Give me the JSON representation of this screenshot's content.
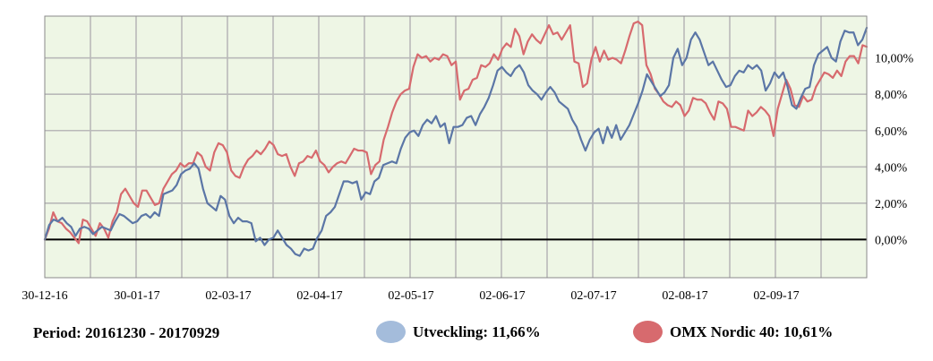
{
  "chart_data": {
    "type": "line",
    "title": "",
    "xlabel": "",
    "ylabel": "",
    "x_tick_labels": [
      "30-12-16",
      "30-01-17",
      "02-03-17",
      "02-04-17",
      "02-05-17",
      "02-06-17",
      "02-07-17",
      "02-08-17",
      "02-09-17"
    ],
    "y_tick_labels": [
      "0,00%",
      "2,00%",
      "4,00%",
      "6,00%",
      "8,00%",
      "10,00%"
    ],
    "y_ticks": [
      0,
      2,
      4,
      6,
      8,
      10
    ],
    "ylim": [
      -2.1,
      12.3
    ],
    "grid": true,
    "zero_line": true,
    "legend_placement": "bottom",
    "series": [
      {
        "name": "Utveckling",
        "color": "#5b76a6",
        "values": [
          0,
          0.8,
          1.1,
          1.0,
          1.2,
          0.9,
          0.7,
          0.2,
          0.6,
          0.7,
          0.6,
          0.3,
          0.5,
          0.7,
          0.6,
          0.5,
          1.0,
          1.4,
          1.3,
          1.1,
          0.9,
          1.0,
          1.3,
          1.4,
          1.2,
          1.5,
          1.3,
          2.5,
          2.6,
          2.7,
          3.0,
          3.6,
          3.8,
          3.9,
          4.2,
          3.9,
          2.8,
          2.0,
          1.8,
          1.6,
          2.4,
          2.2,
          1.3,
          0.9,
          1.2,
          1.0,
          1.0,
          0.9,
          -0.1,
          0.1,
          -0.3,
          0.0,
          0.1,
          0.5,
          0.1,
          -0.3,
          -0.5,
          -0.8,
          -0.9,
          -0.5,
          -0.6,
          -0.5,
          0.1,
          0.5,
          1.3,
          1.5,
          1.8,
          2.5,
          3.2,
          3.2,
          3.1,
          3.2,
          2.2,
          2.6,
          2.5,
          3.2,
          3.4,
          4.1,
          4.2,
          4.3,
          4.2,
          5.0,
          5.6,
          5.9,
          6.0,
          5.7,
          6.3,
          6.6,
          6.4,
          6.8,
          6.2,
          6.4,
          5.3,
          6.2,
          6.2,
          6.3,
          6.7,
          6.8,
          6.3,
          6.9,
          7.3,
          7.8,
          8.5,
          9.3,
          9.5,
          9.2,
          9.0,
          9.4,
          9.6,
          9.2,
          8.5,
          8.2,
          8.0,
          7.7,
          8.1,
          8.4,
          8.1,
          7.6,
          7.4,
          7.2,
          6.6,
          6.2,
          5.5,
          4.9,
          5.5,
          5.9,
          6.1,
          5.3,
          6.2,
          5.6,
          6.3,
          5.5,
          5.9,
          6.3,
          6.9,
          7.5,
          8.2,
          9.1,
          8.7,
          8.3,
          7.9,
          8.1,
          8.5,
          10.0,
          10.5,
          9.6,
          10.0,
          11.0,
          11.4,
          11.0,
          10.3,
          9.6,
          9.8,
          9.3,
          8.8,
          8.4,
          8.5,
          9.0,
          9.3,
          9.2,
          9.6,
          9.4,
          9.6,
          9.3,
          8.2,
          8.6,
          9.2,
          8.9,
          9.2,
          8.4,
          7.4,
          7.2,
          7.8,
          8.3,
          8.4,
          9.6,
          10.2,
          10.4,
          10.6,
          10.0,
          9.8,
          10.9,
          11.5,
          11.4,
          11.4,
          10.7,
          11.0,
          11.66
        ]
      },
      {
        "name": "OMX Nordic 40",
        "color": "#d76a6e",
        "values": [
          0,
          0.6,
          1.5,
          1.0,
          0.9,
          0.6,
          0.4,
          0.1,
          -0.2,
          1.1,
          1.0,
          0.6,
          0.2,
          0.9,
          0.6,
          0.1,
          1.0,
          1.5,
          2.5,
          2.8,
          2.4,
          2.0,
          1.8,
          2.7,
          2.7,
          2.3,
          1.9,
          2.0,
          2.8,
          3.2,
          3.6,
          3.8,
          4.2,
          4.0,
          4.2,
          4.2,
          4.8,
          4.6,
          4.0,
          3.8,
          4.8,
          5.3,
          5.2,
          4.8,
          3.8,
          3.5,
          3.4,
          4.0,
          4.4,
          4.6,
          4.9,
          4.7,
          5.0,
          5.4,
          5.2,
          4.7,
          4.6,
          4.7,
          4.0,
          3.5,
          4.2,
          4.3,
          4.6,
          4.5,
          4.9,
          4.3,
          4.1,
          3.7,
          4.0,
          4.2,
          4.3,
          4.2,
          4.6,
          5.0,
          4.9,
          4.9,
          4.8,
          3.6,
          4.1,
          4.3,
          5.5,
          6.2,
          7.0,
          7.6,
          8.0,
          8.2,
          8.3,
          9.5,
          10.2,
          10.0,
          10.1,
          9.8,
          10.0,
          9.9,
          10.2,
          10.1,
          9.6,
          9.8,
          7.7,
          8.2,
          8.3,
          8.8,
          8.9,
          9.6,
          9.5,
          9.7,
          10.2,
          9.9,
          10.5,
          10.8,
          10.6,
          11.6,
          11.2,
          10.2,
          10.9,
          11.3,
          11.0,
          10.8,
          11.3,
          11.8,
          11.3,
          11.4,
          11.0,
          11.4,
          11.8,
          9.8,
          9.7,
          8.4,
          8.6,
          9.9,
          10.6,
          9.8,
          10.4,
          9.9,
          10.0,
          9.9,
          9.7,
          10.4,
          11.2,
          11.9,
          12.0,
          11.8,
          9.6,
          9.1,
          8.3,
          8.0,
          7.6,
          7.4,
          7.3,
          7.6,
          7.4,
          6.8,
          7.1,
          7.8,
          7.7,
          7.7,
          7.5,
          7.0,
          6.6,
          7.6,
          7.5,
          7.2,
          6.2,
          6.2,
          6.1,
          6.0,
          7.1,
          6.8,
          7.0,
          7.3,
          7.1,
          6.8,
          5.7,
          7.2,
          8.0,
          8.8,
          8.3,
          7.4,
          7.3,
          7.9,
          7.6,
          7.7,
          8.4,
          8.8,
          9.2,
          9.1,
          8.9,
          9.3,
          9.0,
          9.8,
          10.1,
          10.1,
          9.7,
          10.7,
          10.61
        ]
      }
    ]
  },
  "footer": {
    "period": "Period: 20161230 - 20170929",
    "legend": [
      {
        "label": "Utveckling: 11,66%",
        "color": "#a4bcdb"
      },
      {
        "label": "OMX Nordic 40: 10,61%",
        "color": "#d76a6e"
      }
    ]
  }
}
